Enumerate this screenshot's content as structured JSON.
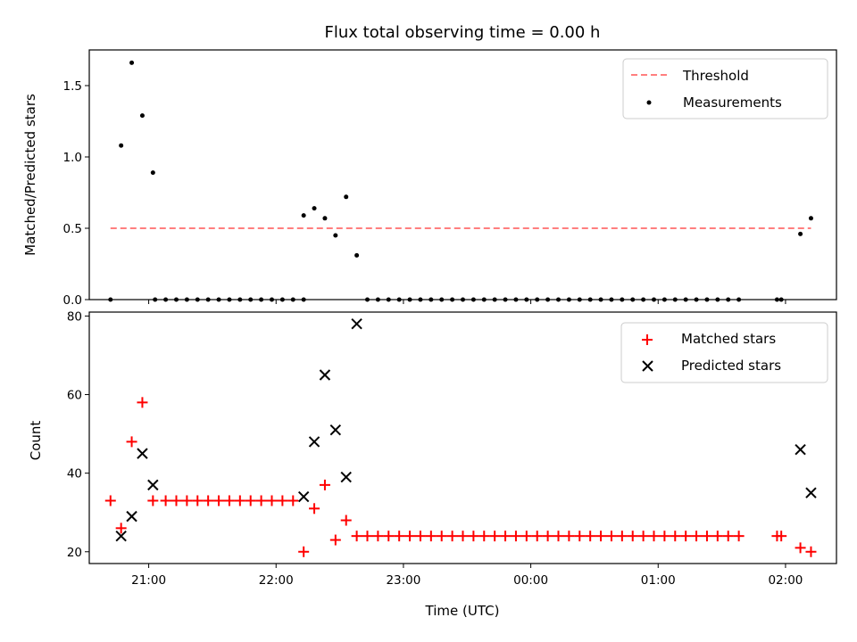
{
  "chart_data": [
    {
      "type": "scatter",
      "title": "Flux total observing time = 0.00 h",
      "xlabel": "",
      "ylabel": "Matched/Predicted stars",
      "xaxis": "time-utc",
      "xlim": [
        "20:32",
        "02:24"
      ],
      "ylim": [
        0,
        1.75
      ],
      "yticks": [
        0.0,
        0.5,
        1.0,
        1.5
      ],
      "ytick_labels": [
        "0.0",
        "0.5",
        "1.0",
        "1.5"
      ],
      "grid": false,
      "legend_position": "top-right",
      "threshold": {
        "name": "Threshold",
        "value": 0.5,
        "x_range": [
          "20:42",
          "02:12"
        ],
        "color": "#ff7f7f",
        "style": "dashed"
      },
      "series": [
        {
          "name": "Measurements",
          "marker": "dot",
          "color": "#000000",
          "points": [
            [
              "20:42",
              0.0
            ],
            [
              "20:47",
              1.08
            ],
            [
              "20:52",
              1.66
            ],
            [
              "20:57",
              1.29
            ],
            [
              "21:02",
              0.89
            ],
            [
              "21:03",
              0.0
            ],
            [
              "21:08",
              0.0
            ],
            [
              "21:13",
              0.0
            ],
            [
              "21:18",
              0.0
            ],
            [
              "21:23",
              0.0
            ],
            [
              "21:28",
              0.0
            ],
            [
              "21:33",
              0.0
            ],
            [
              "21:38",
              0.0
            ],
            [
              "21:43",
              0.0
            ],
            [
              "21:48",
              0.0
            ],
            [
              "21:53",
              0.0
            ],
            [
              "21:58",
              0.0
            ],
            [
              "22:03",
              0.0
            ],
            [
              "22:08",
              0.0
            ],
            [
              "22:13",
              0.0
            ],
            [
              "22:13",
              0.59
            ],
            [
              "22:18",
              0.64
            ],
            [
              "22:23",
              0.57
            ],
            [
              "22:28",
              0.45
            ],
            [
              "22:33",
              0.72
            ],
            [
              "22:38",
              0.31
            ],
            [
              "22:43",
              0.0
            ],
            [
              "22:48",
              0.0
            ],
            [
              "22:53",
              0.0
            ],
            [
              "22:58",
              0.0
            ],
            [
              "23:03",
              0.0
            ],
            [
              "23:08",
              0.0
            ],
            [
              "23:13",
              0.0
            ],
            [
              "23:18",
              0.0
            ],
            [
              "23:23",
              0.0
            ],
            [
              "23:28",
              0.0
            ],
            [
              "23:33",
              0.0
            ],
            [
              "23:38",
              0.0
            ],
            [
              "23:43",
              0.0
            ],
            [
              "23:48",
              0.0
            ],
            [
              "23:53",
              0.0
            ],
            [
              "23:58",
              0.0
            ],
            [
              "00:03",
              0.0
            ],
            [
              "00:08",
              0.0
            ],
            [
              "00:13",
              0.0
            ],
            [
              "00:18",
              0.0
            ],
            [
              "00:23",
              0.0
            ],
            [
              "00:28",
              0.0
            ],
            [
              "00:33",
              0.0
            ],
            [
              "00:38",
              0.0
            ],
            [
              "00:43",
              0.0
            ],
            [
              "00:48",
              0.0
            ],
            [
              "00:53",
              0.0
            ],
            [
              "00:58",
              0.0
            ],
            [
              "01:03",
              0.0
            ],
            [
              "01:08",
              0.0
            ],
            [
              "01:13",
              0.0
            ],
            [
              "01:18",
              0.0
            ],
            [
              "01:23",
              0.0
            ],
            [
              "01:28",
              0.0
            ],
            [
              "01:33",
              0.0
            ],
            [
              "01:38",
              0.0
            ],
            [
              "01:56",
              0.0
            ],
            [
              "01:58",
              0.0
            ],
            [
              "02:07",
              0.46
            ],
            [
              "02:12",
              0.57
            ]
          ]
        }
      ]
    },
    {
      "type": "scatter",
      "title": "",
      "xlabel": "Time (UTC)",
      "ylabel": "Count",
      "xaxis": "time-utc",
      "xlim": [
        "20:32",
        "02:24"
      ],
      "ylim": [
        17,
        81
      ],
      "yticks": [
        20,
        40,
        60,
        80
      ],
      "ytick_labels": [
        "20",
        "40",
        "60",
        "80"
      ],
      "xticks": [
        "21:00",
        "22:00",
        "23:00",
        "00:00",
        "01:00",
        "02:00"
      ],
      "grid": false,
      "legend_position": "top-right",
      "series": [
        {
          "name": "Matched stars",
          "marker": "plus",
          "color": "#ff0000",
          "points": [
            [
              "20:42",
              33
            ],
            [
              "20:47",
              26
            ],
            [
              "20:52",
              48
            ],
            [
              "20:57",
              58
            ],
            [
              "21:02",
              33
            ],
            [
              "21:08",
              33
            ],
            [
              "21:13",
              33
            ],
            [
              "21:18",
              33
            ],
            [
              "21:23",
              33
            ],
            [
              "21:28",
              33
            ],
            [
              "21:33",
              33
            ],
            [
              "21:38",
              33
            ],
            [
              "21:43",
              33
            ],
            [
              "21:48",
              33
            ],
            [
              "21:53",
              33
            ],
            [
              "21:58",
              33
            ],
            [
              "22:03",
              33
            ],
            [
              "22:08",
              33
            ],
            [
              "22:13",
              20
            ],
            [
              "22:18",
              31
            ],
            [
              "22:23",
              37
            ],
            [
              "22:28",
              23
            ],
            [
              "22:33",
              28
            ],
            [
              "22:38",
              24
            ],
            [
              "22:43",
              24
            ],
            [
              "22:48",
              24
            ],
            [
              "22:53",
              24
            ],
            [
              "22:58",
              24
            ],
            [
              "23:03",
              24
            ],
            [
              "23:08",
              24
            ],
            [
              "23:13",
              24
            ],
            [
              "23:18",
              24
            ],
            [
              "23:23",
              24
            ],
            [
              "23:28",
              24
            ],
            [
              "23:33",
              24
            ],
            [
              "23:38",
              24
            ],
            [
              "23:43",
              24
            ],
            [
              "23:48",
              24
            ],
            [
              "23:53",
              24
            ],
            [
              "23:58",
              24
            ],
            [
              "00:03",
              24
            ],
            [
              "00:08",
              24
            ],
            [
              "00:13",
              24
            ],
            [
              "00:18",
              24
            ],
            [
              "00:23",
              24
            ],
            [
              "00:28",
              24
            ],
            [
              "00:33",
              24
            ],
            [
              "00:38",
              24
            ],
            [
              "00:43",
              24
            ],
            [
              "00:48",
              24
            ],
            [
              "00:53",
              24
            ],
            [
              "00:58",
              24
            ],
            [
              "01:03",
              24
            ],
            [
              "01:08",
              24
            ],
            [
              "01:13",
              24
            ],
            [
              "01:18",
              24
            ],
            [
              "01:23",
              24
            ],
            [
              "01:28",
              24
            ],
            [
              "01:33",
              24
            ],
            [
              "01:38",
              24
            ],
            [
              "01:56",
              24
            ],
            [
              "01:58",
              24
            ],
            [
              "02:07",
              21
            ],
            [
              "02:12",
              20
            ]
          ]
        },
        {
          "name": "Predicted stars",
          "marker": "x",
          "color": "#000000",
          "points": [
            [
              "20:47",
              24
            ],
            [
              "20:52",
              29
            ],
            [
              "20:57",
              45
            ],
            [
              "21:02",
              37
            ],
            [
              "22:13",
              34
            ],
            [
              "22:18",
              48
            ],
            [
              "22:23",
              65
            ],
            [
              "22:28",
              51
            ],
            [
              "22:33",
              39
            ],
            [
              "22:38",
              78
            ],
            [
              "02:07",
              46
            ],
            [
              "02:12",
              35
            ]
          ]
        }
      ]
    }
  ]
}
